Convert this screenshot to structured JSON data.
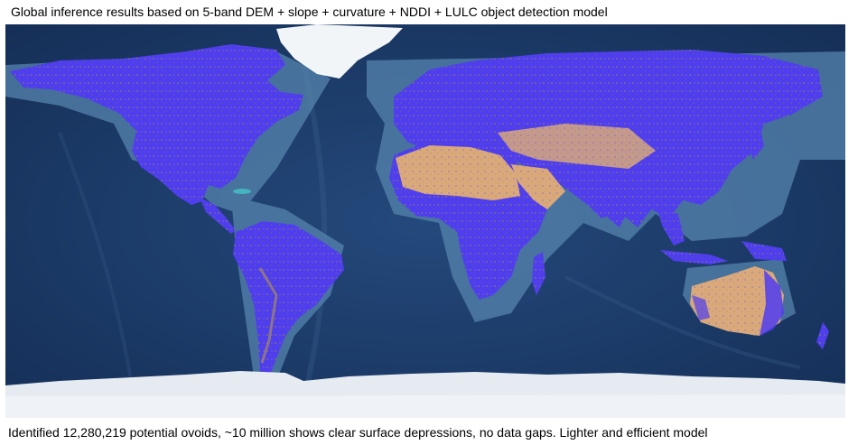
{
  "map": {
    "title": "Global inference results based on 5-band DEM + slope + curvature + NDDI + LULC object detection model",
    "caption": "Identified 12,280,219 potential ovoids, ~10 million shows clear surface depressions, no data gaps. Lighter and efficient model",
    "colors": {
      "ocean": "#1c3e6e",
      "shelf": "#4f7fa8",
      "detections": "#4f3df0",
      "desert": "#d7a87a",
      "ice": "#e8edf3"
    }
  }
}
